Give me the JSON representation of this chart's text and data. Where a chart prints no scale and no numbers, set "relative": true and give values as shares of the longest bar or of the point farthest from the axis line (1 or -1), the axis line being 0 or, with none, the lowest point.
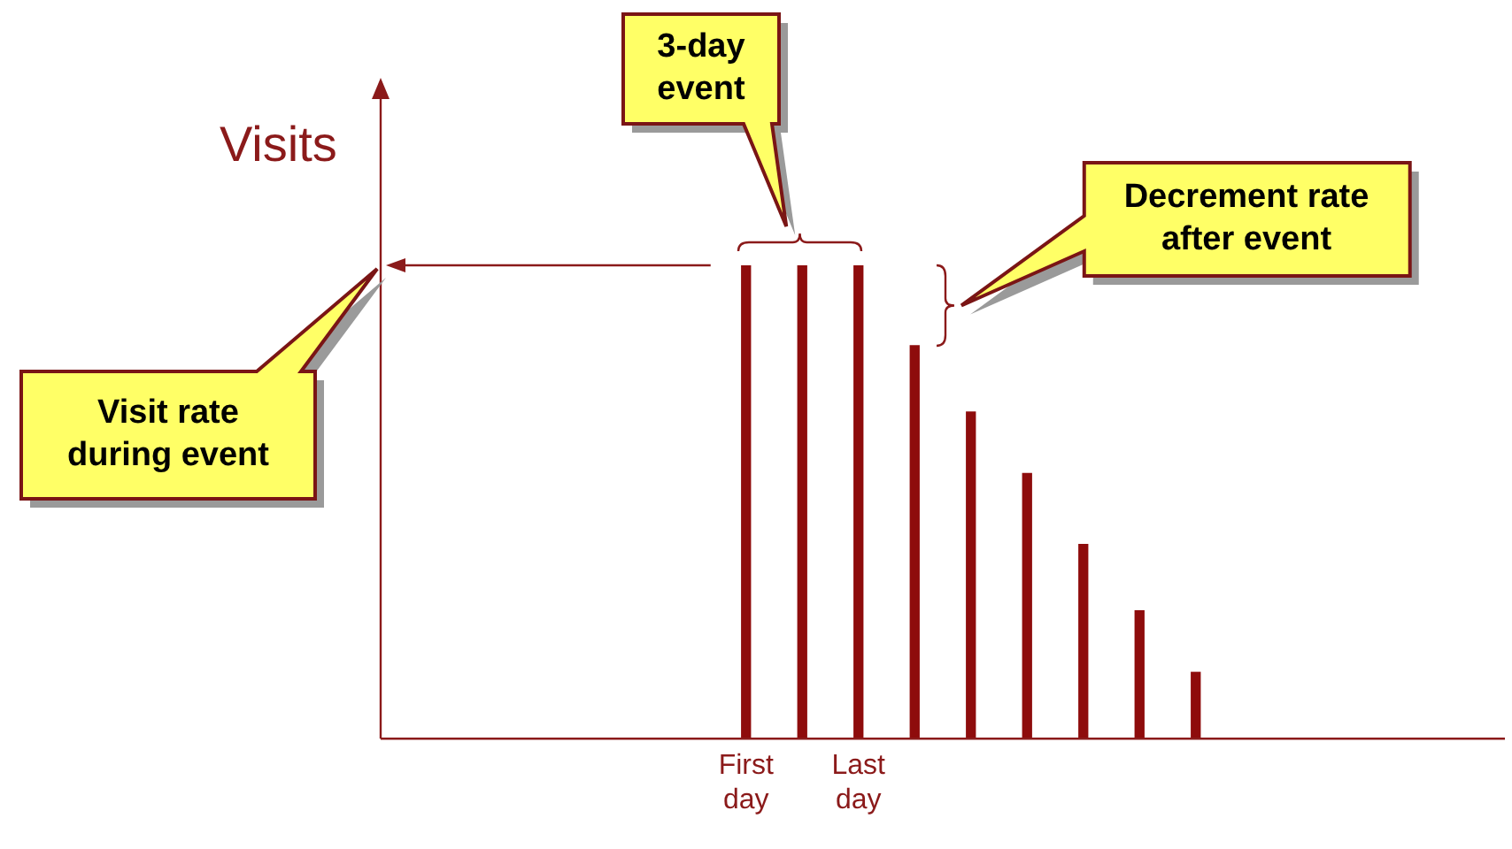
{
  "chart_data": {
    "type": "bar",
    "relative": true,
    "ylabel": "Visits",
    "categories": [
      null,
      null,
      null,
      null,
      null,
      null,
      "First day",
      null,
      "Last day",
      null,
      null,
      null,
      null,
      null,
      null,
      null,
      null,
      null,
      null,
      null
    ],
    "values": [
      null,
      null,
      null,
      null,
      null,
      null,
      1,
      1,
      1,
      0.83,
      0.69,
      0.56,
      0.41,
      0.27,
      0.14,
      null,
      null,
      null,
      null,
      null
    ],
    "color": "#8e0c0c",
    "grid": false,
    "legend": false,
    "annotations": [
      "3-day event",
      "Decrement rate after event",
      "Visit rate during event"
    ]
  }
}
